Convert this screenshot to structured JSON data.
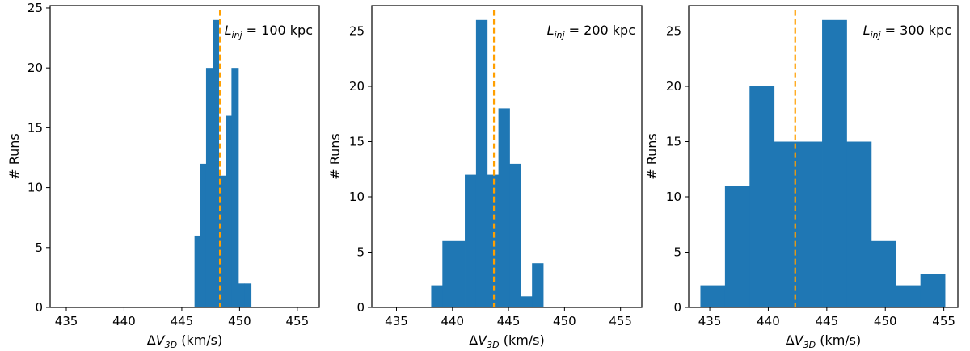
{
  "chart_data": [
    {
      "type": "bar",
      "title": "",
      "annotation": {
        "symbol": "L",
        "subscript": "inj",
        "rest": " = 100 kpc"
      },
      "xlabel": {
        "delta": "ΔV",
        "subscript": "3D",
        "rest": " (km/s)"
      },
      "ylabel": "# Runs",
      "xlim": [
        433.6,
        456.9
      ],
      "ylim": [
        0,
        25.2
      ],
      "xticks": [
        435,
        440,
        445,
        450,
        455
      ],
      "yticks": [
        0,
        5,
        10,
        15,
        20,
        25
      ],
      "bin_edges": [
        446.1,
        446.6,
        447.1,
        447.7,
        448.2,
        448.8,
        449.3,
        449.9,
        450.4,
        451.0
      ],
      "values": [
        6,
        12,
        20,
        24,
        11,
        16,
        20,
        2,
        2
      ],
      "bar_color": "#1f77b4",
      "mean_line": {
        "x": 448.3,
        "color": "#ff9f00"
      }
    },
    {
      "type": "bar",
      "title": "",
      "annotation": {
        "symbol": "L",
        "subscript": "inj",
        "rest": " = 200 kpc"
      },
      "xlabel": {
        "delta": "ΔV",
        "subscript": "3D",
        "rest": " (km/s)"
      },
      "ylabel": "# Runs",
      "xlim": [
        432.8,
        456.9
      ],
      "ylim": [
        0,
        27.3
      ],
      "xticks": [
        435,
        440,
        445,
        450,
        455
      ],
      "yticks": [
        0,
        5,
        10,
        15,
        20,
        25
      ],
      "bin_edges": [
        438.1,
        439.1,
        441.1,
        442.1,
        443.1,
        444.1,
        445.1,
        446.1,
        447.1,
        448.1
      ],
      "values": [
        2,
        6,
        12,
        26,
        12,
        18,
        13,
        1,
        4
      ],
      "bar_color": "#1f77b4",
      "mean_line": {
        "x": 443.7,
        "color": "#ff9f00"
      }
    },
    {
      "type": "bar",
      "title": "",
      "annotation": {
        "symbol": "L",
        "subscript": "inj",
        "rest": " = 300 kpc"
      },
      "xlabel": {
        "delta": "ΔV",
        "subscript": "3D",
        "rest": " (km/s)"
      },
      "ylabel": "# Runs",
      "xlim": [
        433.2,
        456.2
      ],
      "ylim": [
        0,
        27.3
      ],
      "xticks": [
        435,
        440,
        445,
        450,
        455
      ],
      "yticks": [
        0,
        5,
        10,
        15,
        20,
        25
      ],
      "bin_edges": [
        434.2,
        436.3,
        438.4,
        440.5,
        442.5,
        444.6,
        446.7,
        448.8,
        450.9,
        453.0,
        455.1
      ],
      "values": [
        2,
        11,
        20,
        15,
        15,
        26,
        15,
        6,
        2,
        3
      ],
      "bar_color": "#1f77b4",
      "mean_line": {
        "x": 442.3,
        "color": "#ff9f00"
      }
    }
  ]
}
